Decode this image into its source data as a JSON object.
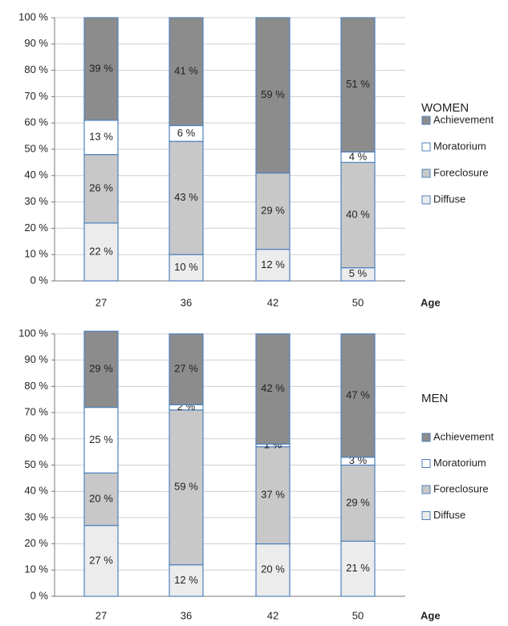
{
  "chart_data": [
    {
      "type": "stacked_bar",
      "legend_title": "WOMEN",
      "x_label": "Age",
      "categories": [
        "27",
        "36",
        "42",
        "50"
      ],
      "series": [
        {
          "name": "Diffuse",
          "color": "#ececec",
          "values": [
            22,
            10,
            12,
            5
          ],
          "value_labels": [
            "22 %",
            "10 %",
            "12 %",
            "5 %"
          ]
        },
        {
          "name": "Foreclosure",
          "color": "#c8c8c8",
          "values": [
            26,
            43,
            29,
            40
          ],
          "value_labels": [
            "26 %",
            "43 %",
            "29 %",
            "40 %"
          ]
        },
        {
          "name": "Moratorium",
          "color": "#ffffff",
          "values": [
            13,
            6,
            0,
            4
          ],
          "value_labels": [
            "13 %",
            "6 %",
            null,
            "4 %"
          ]
        },
        {
          "name": "Achievement",
          "color": "#8c8c8c",
          "values": [
            39,
            41,
            59,
            51
          ],
          "value_labels": [
            "39 %",
            "41 %",
            "59 %",
            "51 %"
          ]
        }
      ],
      "ylim": [
        0,
        100
      ],
      "yticks": [
        {
          "value": 0,
          "label": "0 %"
        },
        {
          "value": 10,
          "label": "10 %"
        },
        {
          "value": 20,
          "label": "20 %"
        },
        {
          "value": 30,
          "label": "30 %"
        },
        {
          "value": 40,
          "label": "40 %"
        },
        {
          "value": 50,
          "label": "50 %"
        },
        {
          "value": 60,
          "label": "60 %"
        },
        {
          "value": 70,
          "label": "70 %"
        },
        {
          "value": 80,
          "label": "80 %"
        },
        {
          "value": 90,
          "label": "90 %"
        },
        {
          "value": 100,
          "label": "100 %"
        }
      ],
      "grid": true
    },
    {
      "type": "stacked_bar",
      "legend_title": "MEN",
      "x_label": "Age",
      "categories": [
        "27",
        "36",
        "42",
        "50"
      ],
      "series": [
        {
          "name": "Diffuse",
          "color": "#ececec",
          "values": [
            27,
            12,
            20,
            21
          ],
          "value_labels": [
            "27 %",
            "12 %",
            "20 %",
            "21 %"
          ]
        },
        {
          "name": "Foreclosure",
          "color": "#c8c8c8",
          "values": [
            20,
            59,
            37,
            29
          ],
          "value_labels": [
            "20 %",
            "59 %",
            "37 %",
            "29 %"
          ]
        },
        {
          "name": "Moratorium",
          "color": "#ffffff",
          "values": [
            25,
            2,
            1,
            3
          ],
          "value_labels": [
            "25 %",
            "2 %",
            "1 %",
            "3 %"
          ]
        },
        {
          "name": "Achievement",
          "color": "#8c8c8c",
          "values": [
            29,
            27,
            42,
            47
          ],
          "value_labels": [
            "29 %",
            "27 %",
            "42 %",
            "47 %"
          ]
        }
      ],
      "ylim": [
        0,
        100
      ],
      "yticks": [
        {
          "value": 0,
          "label": "0 %"
        },
        {
          "value": 10,
          "label": "10 %"
        },
        {
          "value": 20,
          "label": "20 %"
        },
        {
          "value": 30,
          "label": "30 %"
        },
        {
          "value": 40,
          "label": "40 %"
        },
        {
          "value": 50,
          "label": "50 %"
        },
        {
          "value": 60,
          "label": "60 %"
        },
        {
          "value": 70,
          "label": "70 %"
        },
        {
          "value": 80,
          "label": "80 %"
        },
        {
          "value": 90,
          "label": "90 %"
        },
        {
          "value": 100,
          "label": "100 %"
        }
      ],
      "grid": true
    }
  ]
}
